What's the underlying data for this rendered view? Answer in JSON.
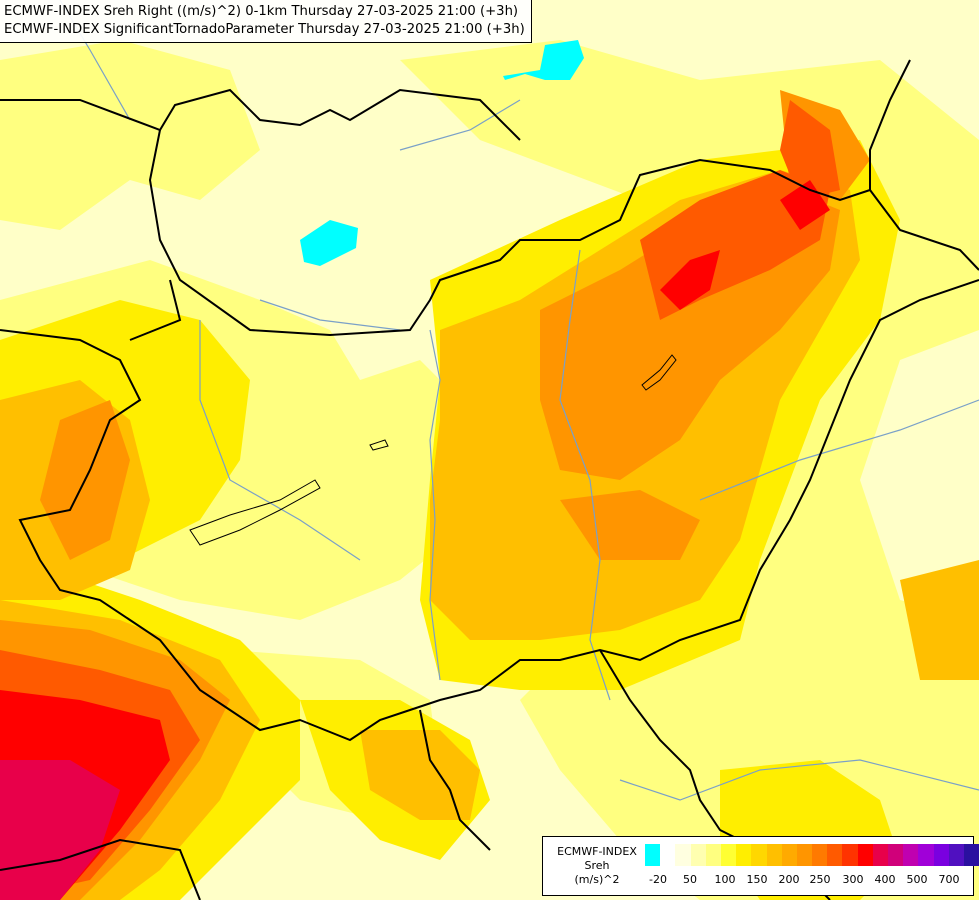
{
  "map": {
    "title_lines": [
      "ECMWF-INDEX Sreh Right ((m/s)^2) 0-1km Thursday 27-03-2025 21:00 (+3h)",
      "ECMWF-INDEX SignificantTornadoParameter Thursday 27-03-2025 21:00 (+3h)"
    ],
    "base_color": "#ffffc8",
    "border_color": "#000000",
    "river_color": "#7aa0c8"
  },
  "legend": {
    "title_lines": [
      "ECMWF-INDEX",
      "Sreh",
      "(m/s)^2"
    ],
    "colors": [
      "#00ffff",
      "#ffffff",
      "#ffffe0",
      "#ffffb0",
      "#ffff80",
      "#ffff33",
      "#ffee00",
      "#ffd700",
      "#ffbf00",
      "#ffaa00",
      "#ff9500",
      "#ff7a00",
      "#ff5a00",
      "#ff3300",
      "#ff0000",
      "#e8004a",
      "#d0007a",
      "#c000b0",
      "#a000d8",
      "#7a00e0",
      "#5010c0",
      "#2a10a0"
    ],
    "tick_labels": [
      "-20",
      "50",
      "100",
      "150",
      "200",
      "250",
      "300",
      "400",
      "500",
      "700"
    ]
  }
}
